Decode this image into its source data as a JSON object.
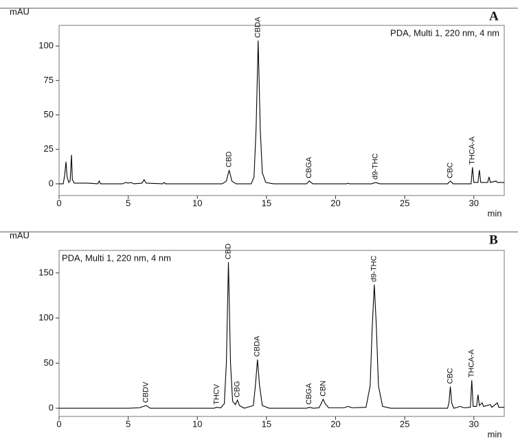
{
  "chart_data": [
    {
      "type": "line",
      "panel": "A",
      "ylabel": "mAU",
      "xlabel": "min",
      "annotation": "PDA, Multi 1, 220 nm, 4 nm",
      "color": "#000000",
      "xlim": [
        0,
        32.2
      ],
      "ylim": [
        -8.5,
        115
      ],
      "xticks": [
        0,
        5,
        10,
        15,
        20,
        25,
        30
      ],
      "yticks": [
        0,
        25,
        50,
        75,
        100
      ],
      "x": [
        0,
        0.3,
        0.4,
        0.5,
        0.58,
        0.7,
        0.8,
        0.9,
        0.96,
        1.1,
        2.0,
        2.8,
        2.9,
        3.0,
        4.6,
        4.8,
        5.0,
        5.2,
        5.4,
        6.0,
        6.15,
        6.3,
        7.5,
        7.6,
        7.7,
        11.8,
        12.1,
        12.2,
        12.3,
        12.4,
        12.5,
        12.8,
        13.9,
        14.1,
        14.25,
        14.4,
        14.55,
        14.7,
        14.95,
        15.5,
        17.9,
        18.1,
        18.35,
        20.8,
        20.9,
        21.0,
        22.6,
        22.9,
        23.2,
        28.1,
        28.3,
        28.5,
        29.8,
        29.9,
        30.0,
        30.3,
        30.4,
        30.5,
        31.0,
        31.1,
        31.2,
        31.6,
        31.7,
        32.2
      ],
      "values": [
        0,
        0,
        6,
        16,
        5,
        1,
        2,
        21,
        3,
        0.5,
        0.5,
        0,
        2,
        0,
        0,
        1,
        0.5,
        1,
        0,
        0.5,
        3,
        0.5,
        0,
        1,
        0,
        0,
        2,
        6,
        10,
        6,
        2,
        0,
        0,
        5,
        40,
        104,
        40,
        8,
        1,
        0,
        0,
        2,
        0,
        0,
        0.5,
        0,
        0,
        1,
        0,
        0,
        2,
        0,
        0,
        12,
        1,
        1,
        10,
        1,
        1,
        5,
        1,
        2,
        1,
        1
      ],
      "peaks": [
        {
          "label": "CBD",
          "x": 12.3
        },
        {
          "label": "CBDA",
          "x": 14.4
        },
        {
          "label": "CBGA",
          "x": 18.1
        },
        {
          "label": "d9-THC",
          "x": 22.9
        },
        {
          "label": "CBC",
          "x": 28.3
        },
        {
          "label": "THCA-A",
          "x": 29.9
        }
      ]
    },
    {
      "type": "line",
      "panel": "B",
      "ylabel": "mAU",
      "xlabel": "min",
      "annotation": "PDA, Multi 1, 220 nm, 4 nm",
      "color": "#000000",
      "xlim": [
        0,
        32.2
      ],
      "ylim": [
        -9.1,
        175
      ],
      "xticks": [
        0,
        5,
        10,
        15,
        20,
        25,
        30
      ],
      "yticks": [
        0,
        50,
        100,
        150
      ],
      "x": [
        0,
        5.0,
        5.8,
        6.3,
        6.6,
        11.2,
        11.4,
        11.7,
        11.95,
        12.1,
        12.25,
        12.4,
        12.55,
        12.75,
        12.9,
        13.05,
        13.4,
        14.05,
        14.2,
        14.35,
        14.5,
        14.7,
        15.2,
        17.9,
        18.1,
        18.4,
        18.8,
        18.95,
        19.1,
        19.25,
        19.5,
        20.6,
        20.9,
        21.2,
        22.2,
        22.5,
        22.65,
        22.8,
        22.95,
        23.1,
        23.4,
        24.0,
        28.1,
        28.2,
        28.3,
        28.4,
        28.55,
        28.8,
        29.0,
        29.3,
        29.75,
        29.85,
        29.95,
        30.2,
        30.3,
        30.4,
        30.6,
        30.7,
        31.2,
        31.3,
        31.7,
        31.8,
        32.2
      ],
      "values": [
        0,
        0,
        0.5,
        3,
        0,
        0,
        1,
        0.5,
        5,
        50,
        162,
        50,
        8,
        4,
        9,
        3,
        0,
        3,
        25,
        54,
        25,
        3,
        0,
        0,
        1,
        0,
        0.5,
        5,
        10,
        5,
        0.5,
        0.5,
        2,
        0.5,
        1,
        25,
        90,
        137,
        90,
        25,
        2,
        0,
        0,
        6,
        24,
        6,
        0,
        1,
        2,
        0.5,
        1,
        31,
        2,
        2,
        15,
        3,
        6,
        2,
        4,
        1,
        6,
        1,
        1
      ],
      "peaks": [
        {
          "label": "CBDV",
          "x": 6.3
        },
        {
          "label": "THCV",
          "x": 11.4
        },
        {
          "label": "CBD",
          "x": 12.25
        },
        {
          "label": "CBG",
          "x": 12.9
        },
        {
          "label": "CBDA",
          "x": 14.35
        },
        {
          "label": "CBGA",
          "x": 18.1
        },
        {
          "label": "CBN",
          "x": 19.1
        },
        {
          "label": "d9-THC",
          "x": 22.8
        },
        {
          "label": "CBC",
          "x": 28.3
        },
        {
          "label": "THCA-A",
          "x": 29.85
        }
      ]
    }
  ]
}
